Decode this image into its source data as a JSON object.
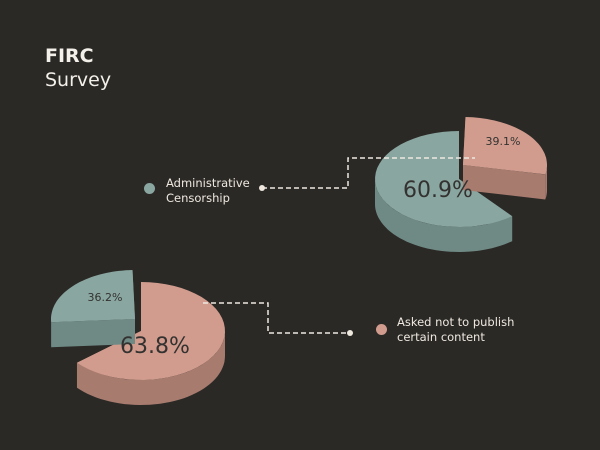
{
  "title": {
    "line1": "FIRC",
    "line2": "Survey"
  },
  "colors": {
    "teal": "#8aa6a0",
    "teal_side": "#6f8a85",
    "pink": "#d19c8e",
    "pink_side": "#a87b6f",
    "label": "#333230"
  },
  "chart_data": [
    {
      "type": "pie",
      "title": "Administrative Censorship",
      "legend": [
        "Administrative",
        "Censorship"
      ],
      "slices": [
        {
          "label": "60.9%",
          "value": 60.9,
          "color": "teal"
        },
        {
          "label": "39.1%",
          "value": 39.1,
          "color": "pink",
          "exploded": true
        }
      ]
    },
    {
      "type": "pie",
      "title": "Asked not to publish certain content",
      "legend": [
        "Asked not to publish",
        "certain content"
      ],
      "slices": [
        {
          "label": "63.8%",
          "value": 63.8,
          "color": "pink"
        },
        {
          "label": "36.2%",
          "value": 36.2,
          "color": "teal",
          "exploded": true
        }
      ]
    }
  ]
}
